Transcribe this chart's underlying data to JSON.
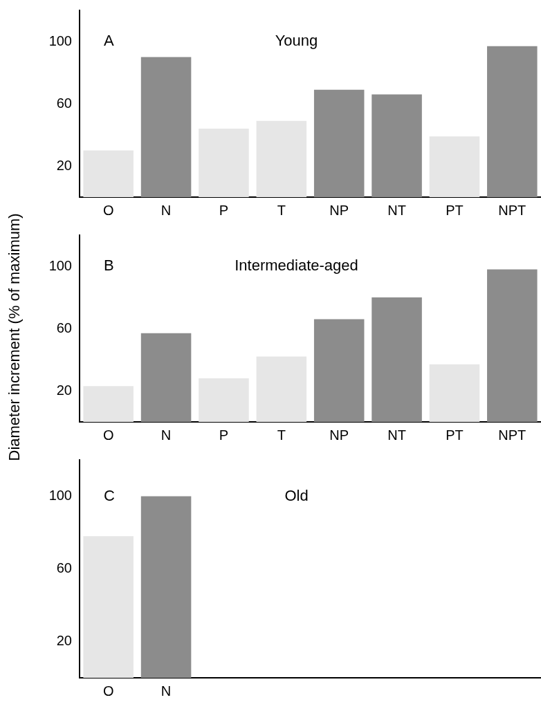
{
  "chart_data": [
    {
      "type": "bar",
      "title": "Young",
      "annotations": [
        "A"
      ],
      "categories": [
        "O",
        "N",
        "P",
        "T",
        "NP",
        "NT",
        "PT",
        "NPT"
      ],
      "values": [
        30,
        90,
        44,
        49,
        69,
        66,
        39,
        97
      ],
      "colors": [
        "#e6e6e6",
        "#8c8c8c",
        "#e6e6e6",
        "#e6e6e6",
        "#8c8c8c",
        "#8c8c8c",
        "#e6e6e6",
        "#8c8c8c"
      ],
      "ylim": [
        0,
        120
      ],
      "yticks": [
        20,
        60,
        100
      ],
      "grid": false,
      "legend": false
    },
    {
      "type": "bar",
      "title": "Intermediate-aged",
      "annotations": [
        "B"
      ],
      "ylabel": "Diameter increment (% of maximum)",
      "categories": [
        "O",
        "N",
        "P",
        "T",
        "NP",
        "NT",
        "PT",
        "NPT"
      ],
      "values": [
        23,
        57,
        28,
        42,
        66,
        80,
        37,
        98
      ],
      "colors": [
        "#e6e6e6",
        "#8c8c8c",
        "#e6e6e6",
        "#e6e6e6",
        "#8c8c8c",
        "#8c8c8c",
        "#e6e6e6",
        "#8c8c8c"
      ],
      "ylim": [
        0,
        120
      ],
      "yticks": [
        20,
        60,
        100
      ],
      "grid": false,
      "legend": false
    },
    {
      "type": "bar",
      "title": "Old",
      "annotations": [
        "C"
      ],
      "categories": [
        "O",
        "N",
        null,
        null,
        null,
        null,
        null,
        null
      ],
      "values": [
        78,
        100,
        null,
        null,
        null,
        null,
        null,
        null
      ],
      "colors": [
        "#e6e6e6",
        "#8c8c8c",
        null,
        null,
        null,
        null,
        null,
        null
      ],
      "ylim": [
        0,
        120
      ],
      "yticks": [
        20,
        60,
        100
      ],
      "grid": false,
      "legend": false
    }
  ]
}
